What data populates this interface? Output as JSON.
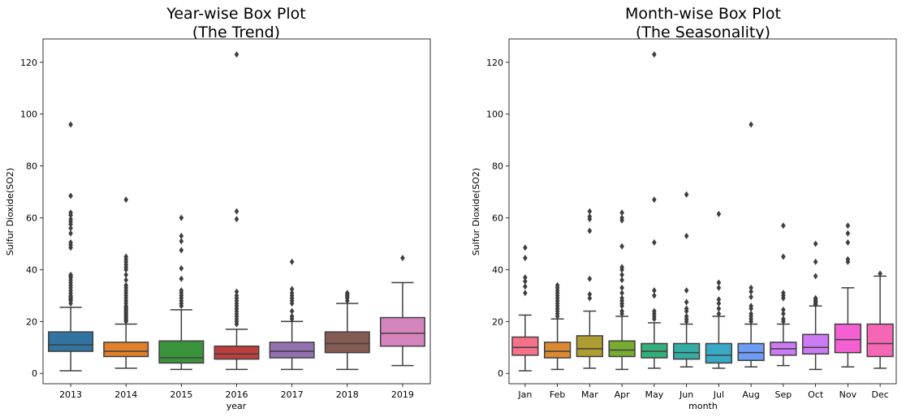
{
  "chart_data": [
    {
      "type": "box",
      "title": [
        "Year-wise Box Plot",
        "(The Trend)"
      ],
      "xlabel": "year",
      "ylabel": "Sulfur Dioxide(SO2)",
      "ylim": [
        -4,
        129
      ],
      "yticks": [
        "0",
        "20",
        "40",
        "60",
        "80",
        "100",
        "120"
      ],
      "categories": [
        "2013",
        "2014",
        "2015",
        "2016",
        "2017",
        "2018",
        "2019"
      ],
      "boxes": [
        {
          "label": "2013",
          "color": "#3274a1",
          "whislo": 1,
          "q1": 8.5,
          "med": 11,
          "q3": 16,
          "whishi": 25.5,
          "fliers": [
            27,
            28,
            28.5,
            29,
            29.5,
            30,
            31,
            32,
            33,
            34,
            35,
            36,
            37,
            37.5,
            38,
            48.5,
            49.5,
            50.5,
            54,
            56,
            57.5,
            58.5,
            59.5,
            61,
            62,
            68.5,
            96
          ]
        },
        {
          "label": "2014",
          "color": "#e1812c",
          "whislo": 2,
          "q1": 6.5,
          "med": 8.5,
          "q3": 12,
          "whishi": 19,
          "fliers": [
            20,
            20.5,
            21,
            21.5,
            22,
            22.5,
            23,
            23.5,
            24,
            24.5,
            25,
            25.5,
            26,
            27,
            28,
            29,
            30,
            31,
            32,
            33,
            34,
            36,
            38,
            40,
            41,
            42,
            43,
            44,
            45,
            67
          ]
        },
        {
          "label": "2015",
          "color": "#3a923a",
          "whislo": 1.5,
          "q1": 4,
          "med": 6,
          "q3": 12.5,
          "whishi": 24.5,
          "fliers": [
            26,
            27,
            28,
            29,
            30,
            31,
            32,
            36.5,
            40.5,
            47.5,
            51,
            53,
            60
          ]
        },
        {
          "label": "2016",
          "color": "#c03d3e",
          "whislo": 1.5,
          "q1": 5.5,
          "med": 7.5,
          "q3": 10.5,
          "whishi": 17,
          "fliers": [
            19,
            20,
            21,
            22,
            23,
            24,
            25,
            26,
            27,
            28,
            29,
            30,
            31.5,
            59.5,
            62.5,
            123
          ]
        },
        {
          "label": "2017",
          "color": "#9372b2",
          "whislo": 1.5,
          "q1": 6,
          "med": 8.5,
          "q3": 12,
          "whishi": 20,
          "fliers": [
            21,
            22,
            24,
            27,
            28,
            29,
            30,
            31,
            32.5,
            43
          ]
        },
        {
          "label": "2018",
          "color": "#845b53",
          "whislo": 1.5,
          "q1": 8,
          "med": 11.5,
          "q3": 16,
          "whishi": 27,
          "fliers": [
            28,
            29,
            29.5,
            30,
            30.5,
            31
          ]
        },
        {
          "label": "2019",
          "color": "#d684bd",
          "whislo": 3,
          "q1": 10.5,
          "med": 15.5,
          "q3": 21.5,
          "whishi": 35,
          "fliers": [
            44.5
          ]
        }
      ]
    },
    {
      "type": "box",
      "title": [
        "Month-wise Box Plot",
        "(The Seasonality)"
      ],
      "xlabel": "month",
      "ylabel": "Sulfur Dioxide(SO2)",
      "ylim": [
        -4,
        129
      ],
      "yticks": [
        "0",
        "20",
        "40",
        "60",
        "80",
        "100",
        "120"
      ],
      "categories": [
        "Jan",
        "Feb",
        "Mar",
        "Apr",
        "May",
        "Jun",
        "Jul",
        "Aug",
        "Sep",
        "Oct",
        "Nov",
        "Dec"
      ],
      "boxes": [
        {
          "label": "Jan",
          "color": "#f77189",
          "whislo": 1,
          "q1": 7,
          "med": 10,
          "q3": 14,
          "whishi": 22.5,
          "fliers": [
            31,
            33.5,
            35.5,
            37,
            44.5,
            48.5
          ]
        },
        {
          "label": "Feb",
          "color": "#dc8932",
          "whislo": 1.5,
          "q1": 6,
          "med": 8.5,
          "q3": 12,
          "whishi": 21,
          "fliers": [
            22,
            23,
            24,
            25,
            26,
            27,
            28,
            29,
            30,
            31,
            32,
            33,
            34
          ]
        },
        {
          "label": "Mar",
          "color": "#ae9d31",
          "whislo": 2,
          "q1": 6.5,
          "med": 9.5,
          "q3": 14.5,
          "whishi": 24,
          "fliers": [
            29,
            30.5,
            36.5,
            55,
            59.5,
            60.5,
            62.5
          ]
        },
        {
          "label": "Apr",
          "color": "#77ab31",
          "whislo": 1.5,
          "q1": 6.5,
          "med": 9,
          "q3": 12.5,
          "whishi": 22,
          "fliers": [
            23,
            24,
            26,
            27,
            28,
            29,
            31,
            33,
            36,
            38,
            40,
            41,
            49,
            59,
            60,
            62
          ]
        },
        {
          "label": "May",
          "color": "#33b07a",
          "whislo": 2,
          "q1": 6,
          "med": 8.5,
          "q3": 11.5,
          "whishi": 19.5,
          "fliers": [
            21,
            22,
            23,
            24,
            30,
            32,
            50.5,
            67,
            123
          ]
        },
        {
          "label": "Jun",
          "color": "#36ada4",
          "whislo": 2.5,
          "q1": 5.5,
          "med": 8,
          "q3": 11.5,
          "whishi": 19,
          "fliers": [
            20,
            21,
            22,
            24,
            25,
            27.5,
            32,
            53,
            69
          ]
        },
        {
          "label": "Jul",
          "color": "#38a9c5",
          "whislo": 2,
          "q1": 4,
          "med": 7,
          "q3": 11.5,
          "whishi": 22,
          "fliers": [
            23,
            25,
            27,
            28.5,
            33,
            35,
            61.5
          ]
        },
        {
          "label": "Aug",
          "color": "#6e9bf4",
          "whislo": 2.5,
          "q1": 5,
          "med": 8,
          "q3": 11.5,
          "whishi": 19,
          "fliers": [
            20,
            21,
            22,
            23,
            25,
            26,
            29.5,
            31.5,
            33,
            96
          ]
        },
        {
          "label": "Sep",
          "color": "#cc7af4",
          "whislo": 3,
          "q1": 7,
          "med": 9.5,
          "q3": 12,
          "whishi": 19,
          "fliers": [
            20,
            21,
            23,
            24.5,
            29,
            30,
            31,
            45,
            57
          ]
        },
        {
          "label": "Oct",
          "color": "#cc7af4",
          "whislo": 1.5,
          "q1": 7.5,
          "med": 10,
          "q3": 15,
          "whishi": 26,
          "fliers": [
            26.5,
            27,
            27.5,
            28,
            28.5,
            29,
            37.5,
            43,
            50
          ]
        },
        {
          "label": "Nov",
          "color": "#f45fd1",
          "whislo": 2.5,
          "q1": 8,
          "med": 13,
          "q3": 19,
          "whishi": 33,
          "fliers": [
            43,
            44,
            50.5,
            54,
            57
          ]
        },
        {
          "label": "Dec",
          "color": "#f566b4",
          "whislo": 2,
          "q1": 6.5,
          "med": 11.5,
          "q3": 19,
          "whishi": 37.5,
          "fliers": [
            38.5
          ]
        }
      ]
    }
  ]
}
